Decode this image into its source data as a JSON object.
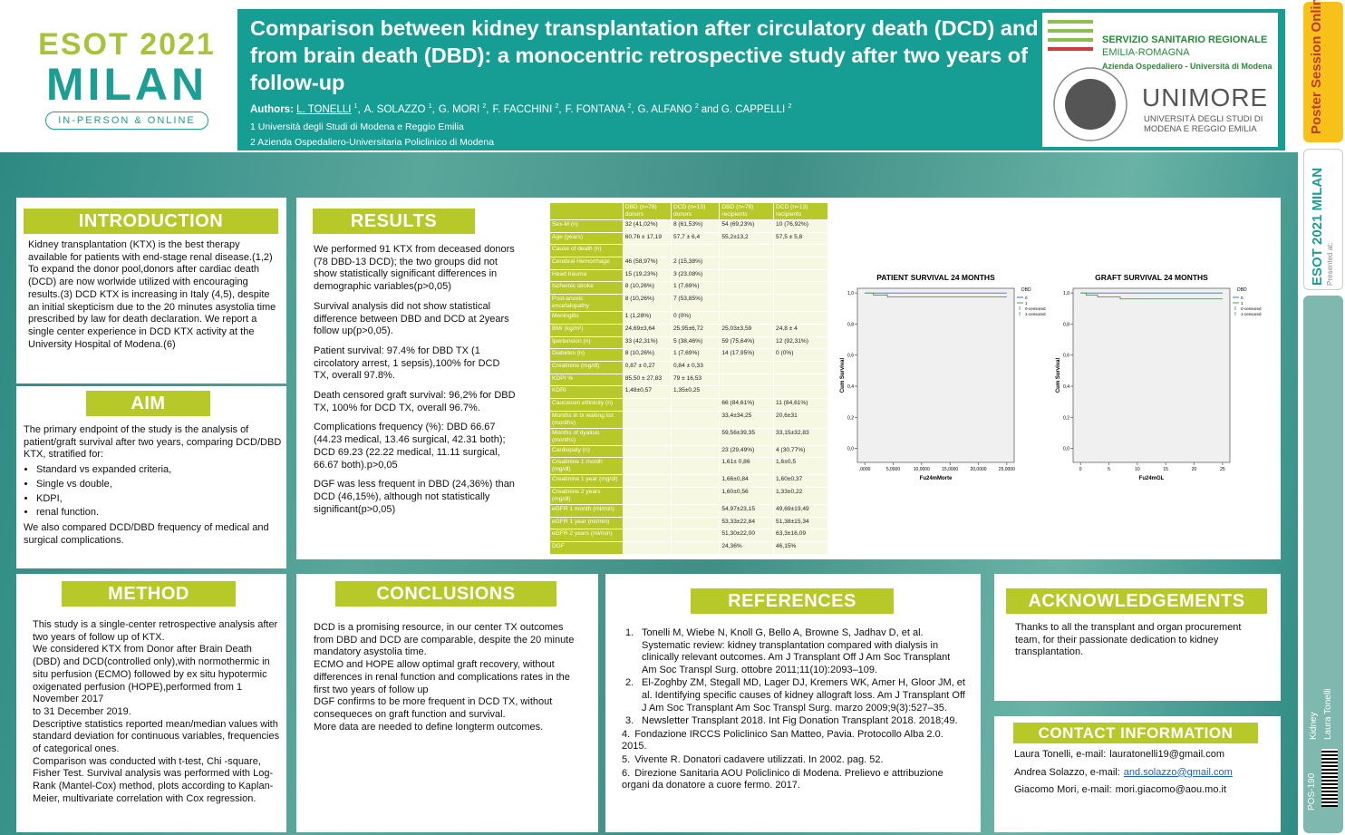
{
  "header": {
    "title": "Comparison between kidney transplantation after circulatory death (DCD) and from brain death (DBD): a monocentric retrospective study after two years of follow-up",
    "authors_label": "Authors:",
    "authors": [
      {
        "name": "L. TONELLI",
        "sup": "1",
        "sep": ","
      },
      {
        "name": "A. SOLAZZO",
        "sup": "1",
        "sep": ","
      },
      {
        "name": "G. MORI",
        "sup": "2",
        "sep": ","
      },
      {
        "name": "F. FACCHINI",
        "sup": "2",
        "sep": ","
      },
      {
        "name": "F. FONTANA",
        "sup": "2",
        "sep": ","
      },
      {
        "name": "G. ALFANO",
        "sup": "2",
        "sep": "and"
      },
      {
        "name": "G. CAPPELLI",
        "sup": "2"
      }
    ],
    "affiliations": [
      "1 Università degli Studi di Modena e Reggio Emilia",
      "2 Azienda Ospedaliero-Universitaria Policlinico di Modena"
    ]
  },
  "logos": {
    "esot_top": "ESOT 2021",
    "esot_city": "MILAN",
    "esot_tag": "IN-PERSON & ONLINE",
    "ssr_1": "SERVIZIO SANITARIO REGIONALE",
    "ssr_2": "EMILIA-ROMAGNA",
    "ssr_3": "Azienda Ospedaliero - Università di Modena",
    "unimore": "UNIMORE",
    "unimore_1": "UNIVERSITÀ DEGLI STUDI DI",
    "unimore_2": "MODENA E REGGIO EMILIA"
  },
  "sidebar": {
    "poster_logo": "Poster Session Online",
    "presented": "Presented at:",
    "esot": "ESOT 2021 MILAN",
    "topic": "Kidney",
    "presenter": "Laura Tonelli",
    "code": "POS-190"
  },
  "introduction": {
    "heading": "INTRODUCTION",
    "paragraphs": [
      "Kidney transplantation (KTX) is the best therapy available for patients with end-stage renal disease.(1,2)",
      "To expand the donor pool,donors after cardiac death (DCD) are now worlwide utilized with encouraging results.(3) DCD KTX is increasing in Italy (4,5), despite an initial skepticism due to the 20 minutes asystolia time prescribed by law for death declaration. We report a single center experience in DCD KTX activity at the University Hospital of Modena.(6)"
    ]
  },
  "aim": {
    "heading": "AIM",
    "intro": "The primary endpoint of the study is the analysis of patient/graft survival after two years, comparing DCD/DBD KTX, stratified for:",
    "bullets": [
      "Standard vs expanded criteria,",
      "Single vs double,",
      "KDPI,",
      "renal function."
    ],
    "outro": "We also compared DCD/DBD frequency of medical and surgical complications."
  },
  "results": {
    "heading": "RESULTS",
    "paragraphs": [
      "We performed 91 KTX from deceased donors (78 DBD-13 DCD); the two groups did not show statistically significant differences in demographic variables(p>0,05)",
      "Survival analysis did not show statistical difference between DBD and DCD at 2years  follow up(p>0,05).",
      "Patient survival: 97.4% for DBD TX (1 circolatory arrest, 1 sepsis),100% for DCD TX, overall 97.8%.",
      "Death censored graft survival: 96,2% for DBD TX, 100% for DCD TX, overall 96.7%.",
      "Complications frequency (%): DBD 66.67 (44.23 medical, 13.46 surgical, 42.31 both); DCD 69.23 (22.22 medical, 11.11 surgical, 66.67 both).p>0,05",
      "DGF was less frequent in DBD (24,36%) than DCD (46,15%), although not statistically significant(p>0,05)"
    ]
  },
  "table": {
    "header": [
      null,
      "DBD (n=78) donors",
      "DCD (n=13) donors",
      "DBD (n=78) recipients",
      "DCD (n=13) recipients"
    ],
    "rows": [
      [
        "Sex-M (n)",
        "32 (41,02%)",
        "8 (61,53%)",
        "54 (69,23%)",
        "10 (76,92%)"
      ],
      [
        "Age (years)",
        "60,76 ± 17,19",
        "57,7 ± 6,4",
        "55,2±13,2",
        "57,5 ± 5,8"
      ],
      [
        "Cause of death (n)",
        null,
        null,
        null,
        null
      ],
      [
        "Cerebral Hemorrhage",
        "46 (58,97%)",
        "2 (15,38%)",
        null,
        null
      ],
      [
        "Head trauma",
        "15 (19,23%)",
        "3 (23,08%)",
        null,
        null
      ],
      [
        "Ischemic stroke",
        "8 (10,26%)",
        "1 (7,69%)",
        null,
        null
      ],
      [
        "Post-anoxic encefalopathy",
        "8 (10,26%)",
        "7 (53,85%)",
        null,
        null
      ],
      [
        "Meningitis",
        "1 (1,28%)",
        "0 (0%)",
        null,
        null
      ],
      [
        "BMI (kg/m²)",
        "24,69±3,64",
        "25,95±6,72",
        "25,03±3,59",
        "24,8 ± 4"
      ],
      [
        "Ipertension (n)",
        "33 (42,31%)",
        "5 (38,46%)",
        "59 (75,64%)",
        "12 (92,31%)"
      ],
      [
        "Diabetes (n)",
        "8 (10,26%)",
        "1 (7,69%)",
        "14 (17,95%)",
        "0 (0%)"
      ],
      [
        "Creatinine (mg/dl)",
        "0,87 ± 0,27",
        "0,84 ± 0,33",
        null,
        null
      ],
      [
        "KDPI %",
        "85,50 ± 27,83",
        "79 ± 16,53",
        null,
        null
      ],
      [
        "KDRI",
        "1,48±0,57",
        "1,35±0,25",
        null,
        null
      ],
      [
        "Caucasian ethnicity (n)",
        null,
        null,
        "66 (84,61%)",
        "11 (84,61%)"
      ],
      [
        "Months in tx waiting list (months)",
        null,
        null,
        "33,4±34,25",
        "20,6±31"
      ],
      [
        "Months of dyalisis (months)",
        null,
        null,
        "59,56±39,35",
        "33,15±32,83"
      ],
      [
        "Cardiopaty (n)",
        null,
        null,
        "23 (29,49%)",
        "4 (30,77%)"
      ],
      [
        "Creatinine 1 month (mg/dl)",
        null,
        null,
        "1,61± 0,86",
        "1,6±0,5"
      ],
      [
        "Creatinine 1 year (mg/dl)",
        null,
        null,
        "1,66±0,84",
        "1,60±0,37"
      ],
      [
        "Creatinine 2 years (mg/dl)",
        null,
        null,
        "1,60±0,56",
        "1,33±0,22"
      ],
      [
        "eGFR 1 month (ml/min)",
        null,
        null,
        "54,97±23,15",
        "49,69±19,49"
      ],
      [
        "eGFR 1 year (ml/min)",
        null,
        null,
        "53,33±22,84",
        "51,38±15,34"
      ],
      [
        "eGFR 2 years (ml/min)",
        null,
        null,
        "51,30±22,00",
        "63,3±16,09"
      ],
      [
        "DGF",
        null,
        null,
        "24,36%",
        "46,15%"
      ]
    ]
  },
  "charts": [
    {
      "type": "line",
      "title": "PATIENT SURVIVAL 24 MONTHS",
      "xlabel": "Fu24mMorte",
      "ylabel": "Cum Survival",
      "xlim": [
        -1.3,
        26.3
      ],
      "ylim": [
        -0.09,
        1.03
      ],
      "xticks": [
        {
          "value": 0,
          "label": ",0000"
        },
        {
          "value": 5,
          "label": "5,0000"
        },
        {
          "value": 10,
          "label": "10,0000"
        },
        {
          "value": 15,
          "label": "15,0000"
        },
        {
          "value": 20,
          "label": "20,0000"
        },
        {
          "value": 25,
          "label": "25,0000"
        }
      ],
      "yticks": [
        {
          "value": 0,
          "label": "0,0"
        },
        {
          "value": 0.2,
          "label": "0,2"
        },
        {
          "value": 0.4,
          "label": "0,4"
        },
        {
          "value": 0.6,
          "label": "0,6"
        },
        {
          "value": 0.8,
          "label": "0,8"
        },
        {
          "value": 1,
          "label": "1,0"
        }
      ],
      "legend_title": "DBD",
      "censored_labels": [
        "0-censored",
        "1-censored"
      ],
      "series": [
        {
          "name": "0",
          "color": "#3a6fd0",
          "x": [
            0,
            25
          ],
          "values": [
            1,
            1
          ]
        },
        {
          "name": "1",
          "color": "#3ca83c",
          "x": [
            0,
            1.5,
            1.5,
            4,
            4,
            25
          ],
          "values": [
            1,
            1,
            0.987,
            0.987,
            0.974,
            0.974
          ]
        }
      ]
    },
    {
      "type": "line",
      "title": "GRAFT SURVIVAL 24 MONTHS",
      "xlabel": "Fu24mGL",
      "ylabel": "Cum Survival",
      "xlim": [
        -1.3,
        26.3
      ],
      "ylim": [
        -0.09,
        1.03
      ],
      "xticks": [
        0,
        5,
        10,
        15,
        20,
        25
      ],
      "yticks": [
        {
          "value": 0,
          "label": "0,0"
        },
        {
          "value": 0.2,
          "label": "0,2"
        },
        {
          "value": 0.4,
          "label": "0,4"
        },
        {
          "value": 0.6,
          "label": "0,6"
        },
        {
          "value": 0.8,
          "label": "0,8"
        },
        {
          "value": 1,
          "label": "1,0"
        }
      ],
      "legend_title": "DBD",
      "censored_labels": [
        "0-censored",
        "1-censored"
      ],
      "series": [
        {
          "name": "0",
          "color": "#3a6fd0",
          "x": [
            0,
            25
          ],
          "values": [
            1,
            1
          ]
        },
        {
          "name": "1",
          "color": "#3ca83c",
          "x": [
            0,
            1,
            1,
            3,
            3,
            7,
            7,
            25
          ],
          "values": [
            1,
            1,
            0.987,
            0.987,
            0.974,
            0.974,
            0.962,
            0.962
          ]
        }
      ]
    }
  ],
  "method": {
    "heading": "METHOD",
    "lines": [
      "This study is a single-center retrospective analysis after two years of follow up of KTX.",
      "We considered KTX from Donor after Brain Death (DBD) and DCD(controlled only),with normothermic in situ perfusion (ECMO) followed by ex situ hypotermic oxigenated perfusion (HOPE),performed from 1 November 2017",
      "to 31 December 2019.",
      "Descriptive statistics reported mean/median values with standard deviation for continuous variables, frequencies of categorical ones.",
      "Comparison was conducted with t-test, Chi -square, Fisher Test. Survival analysis was performed with Log-Rank (Mantel-Cox) method, plots according to Kaplan-Meier, multivariate correlation with Cox regression."
    ]
  },
  "conclusions": {
    "heading": "CONCLUSIONS",
    "lines": [
      "DCD is a promising resource, in our center TX outcomes from DBD and DCD are comparable, despite the 20 minute mandatory asystolia time.",
      "ECMO and HOPE allow optimal graft recovery, without differences in renal function and complications rates in the first two years of follow up",
      "DGF confirms to be more frequent in DCD TX, without consequeces on graft function and survival.",
      "More data are needed to define longterm outcomes."
    ]
  },
  "references": {
    "heading": "REFERENCES",
    "items": [
      {
        "num": "1.",
        "text": "Tonelli M, Wiebe N, Knoll G, Bello A, Browne S, Jadhav D, et al. Systematic review: kidney transplantation compared with dialysis in clinically relevant outcomes. Am J Transplant Off J Am Soc Transplant Am Soc Transpl Surg. ottobre 2011;11(10):2093–109."
      },
      {
        "num": "2.",
        "text": "El-Zoghby ZM, Stegall MD, Lager DJ, Kremers WK, Amer H, Gloor JM, et al. Identifying specific causes of kidney allograft loss. Am J Transplant Off J Am Soc Transplant Am Soc Transpl Surg. marzo 2009;9(3):527–35."
      },
      {
        "num": "3.",
        "text": "Newsletter Transplant 2018. Int Fig Donation Transplant 2018. 2018;49."
      },
      {
        "num": "4.",
        "text": "Fondazione IRCCS Policlinico San Matteo, Pavia. Protocollo Alba 2.0. 2015."
      },
      {
        "num": "5.",
        "text": "Vivente R. Donatori cadavere utilizzati. In 2002. pag. 52."
      },
      {
        "num": "6.",
        "text": "Direzione Sanitaria AOU Policlinico di Modena. Prelievo e attribuzione organi da donatore a cuore fermo. 2017."
      }
    ]
  },
  "acknowledgements": {
    "heading": "ACKNOWLEDGEMENTS",
    "text": "Thanks to all the transplant and organ procurement team, for their passionate dedication to kidney transplantation."
  },
  "contact": {
    "heading": "CONTACT INFORMATION",
    "entries": [
      {
        "prefix": "Laura Tonelli, e-mail:",
        "email": "lauratonelli19@gmail.com",
        "link": false
      },
      {
        "prefix": "Andrea Solazzo, e-mail:",
        "email": "and.solazzo@gmail.com",
        "link": true
      },
      {
        "prefix": "Giacomo Mori, e-mail:",
        "email": "mori.giacomo@aou.mo.it",
        "link": false
      }
    ]
  }
}
